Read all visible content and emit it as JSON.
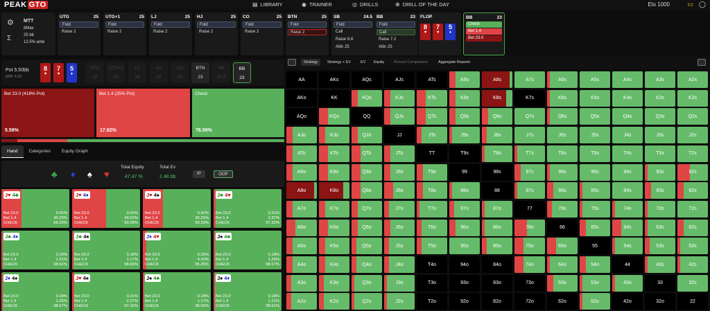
{
  "nav": {
    "logo_a": "PEAK",
    "logo_b": "GTO",
    "library": "LIBRARY",
    "trainer": "TRAINER",
    "drills": "DRILLS",
    "dotd": "DRILL OF THE DAY",
    "elo": "Elo 1000"
  },
  "settings": {
    "game": "MTT",
    "max": "8Max",
    "bb": "25 bb",
    "ante": "12.5% ante"
  },
  "positions": [
    {
      "name": "UTG",
      "stack": "25",
      "opts": [
        "Fold",
        "Raise 2"
      ],
      "sel": -1
    },
    {
      "name": "UTG+1",
      "stack": "25",
      "opts": [
        "Fold",
        "Raise 2"
      ],
      "sel": -1
    },
    {
      "name": "LJ",
      "stack": "25",
      "opts": [
        "Fold",
        "Raise 2"
      ],
      "sel": -1
    },
    {
      "name": "HJ",
      "stack": "25",
      "opts": [
        "Fold",
        "Raise 2"
      ],
      "sel": -1
    },
    {
      "name": "CO",
      "stack": "25",
      "opts": [
        "Fold",
        "Raise 2"
      ],
      "sel": -1
    },
    {
      "name": "BTN",
      "stack": "25",
      "opts": [
        "Fold",
        "Raise 2"
      ],
      "sel": 1
    },
    {
      "name": "SB",
      "stack": "24.5",
      "opts": [
        "Fold",
        "Call",
        "Raise 6.6",
        "Allin 25"
      ],
      "sel": -1
    },
    {
      "name": "BB",
      "stack": "23",
      "opts": [
        "Fold",
        "Call",
        "Raise 7.2",
        "Allin 25"
      ],
      "sel": 1
    }
  ],
  "flop": {
    "label": "FLOP",
    "cards": [
      {
        "rank": "8",
        "suit": "♥"
      },
      {
        "rank": "7",
        "suit": "♥"
      },
      {
        "rank": "5",
        "suit": "♦"
      }
    ]
  },
  "bb_panel": {
    "name": "BB",
    "stack": "23",
    "opts": [
      "Check",
      "Bet 1.4",
      "Bet 23.0"
    ]
  },
  "pot": {
    "label": "Pot",
    "value": "5.50bb",
    "spr": "SPR: 4.18"
  },
  "board_cards": [
    {
      "rank": "8",
      "suit": "♥"
    },
    {
      "rank": "7",
      "suit": "♥"
    },
    {
      "rank": "5",
      "suit": "♦"
    }
  ],
  "seats": [
    {
      "name": "UTG",
      "stack": "25",
      "on": false
    },
    {
      "name": "UTG+1",
      "stack": "25",
      "on": false
    },
    {
      "name": "LJ",
      "stack": "25",
      "on": false
    },
    {
      "name": "HJ",
      "stack": "25",
      "on": false
    },
    {
      "name": "CO",
      "stack": "25",
      "on": false
    },
    {
      "name": "BTN",
      "stack": "23",
      "on": true
    },
    {
      "name": "SB",
      "stack": "24.5",
      "on": false
    },
    {
      "name": "BB",
      "stack": "23",
      "on": true,
      "bb": true
    }
  ],
  "actions": [
    {
      "label": "Bet 23.0 (418% Pot)",
      "pct": "5.59%",
      "color": "#8b1414"
    },
    {
      "label": "Bet 1.4 (25% Pot)",
      "pct": "17.82%",
      "color": "#e04545"
    },
    {
      "label": "Check",
      "pct": "76.59%",
      "color": "#59b05a"
    }
  ],
  "subtabs": [
    "Hand",
    "Categories",
    "Equity Graph"
  ],
  "equity": {
    "total_equity_label": "Total Equity",
    "total_equity": "47.47 %",
    "total_ev_label": "Total Ev",
    "total_ev": "2.48 bb",
    "ip": "IP",
    "oop": "OOP"
  },
  "combos": [
    {
      "c1": "J",
      "s1": "♥",
      "col1": "red",
      "c2": "4",
      "s2": "♣",
      "col2": "green",
      "v": [
        "0.42%",
        "30.25%",
        "69.33%"
      ],
      "bet": 30
    },
    {
      "c1": "J",
      "s1": "♥",
      "col1": "red",
      "c2": "4",
      "s2": "♦",
      "col2": "blue",
      "v": [
        "0.42%",
        "49.52%",
        "50.06%"
      ],
      "bet": 50
    },
    {
      "c1": "J",
      "s1": "♥",
      "col1": "red",
      "c2": "4",
      "s2": "♠",
      "col2": "black",
      "v": [
        "0.42%",
        "30.25%",
        "69.33%"
      ],
      "bet": 30
    },
    {
      "c1": "J",
      "s1": "♣",
      "col1": "green",
      "c2": "4",
      "s2": "♥",
      "col2": "red",
      "v": [
        "0.31%",
        "2.37%",
        "97.32%"
      ],
      "bet": 3
    },
    {
      "c1": "J",
      "s1": "♣",
      "col1": "green",
      "c2": "4",
      "s2": "♦",
      "col2": "blue",
      "v": [
        "0.18%",
        "1.21%",
        "98.61%"
      ],
      "bet": 2
    },
    {
      "c1": "J",
      "s1": "♣",
      "col1": "green",
      "c2": "4",
      "s2": "♠",
      "col2": "black",
      "v": [
        "0.18%",
        "1.17%",
        "98.65%"
      ],
      "bet": 2
    },
    {
      "c1": "J",
      "s1": "♦",
      "col1": "blue",
      "c2": "4",
      "s2": "♥",
      "col2": "red",
      "v": [
        "0.33%",
        "4.43%",
        "95.25%"
      ],
      "bet": 5
    },
    {
      "c1": "J",
      "s1": "♠",
      "col1": "black",
      "c2": "4",
      "s2": "♣",
      "col2": "green",
      "v": [
        "0.18%",
        "1.25%",
        "98.57%"
      ],
      "bet": 2
    },
    {
      "c1": "J",
      "s1": "♦",
      "col1": "blue",
      "c2": "4",
      "s2": "♠",
      "col2": "black",
      "v": [
        "0.18%",
        "1.25%",
        "98.57%"
      ],
      "bet": 2
    },
    {
      "c1": "J",
      "s1": "♥",
      "col1": "red",
      "c2": "4",
      "s2": "♠",
      "col2": "black",
      "v": [
        "0.31%",
        "2.37%",
        "97.32%"
      ],
      "bet": 3
    },
    {
      "c1": "J",
      "s1": "♠",
      "col1": "black",
      "c2": "4",
      "s2": "♣",
      "col2": "green",
      "v": [
        "0.18%",
        "1.17%",
        "98.65%"
      ],
      "bet": 2
    },
    {
      "c1": "J",
      "s1": "♠",
      "col1": "black",
      "c2": "4",
      "s2": "♦",
      "col2": "blue",
      "v": [
        "0.18%",
        "1.21%",
        "98.61%"
      ],
      "bet": 2
    }
  ],
  "combo_labels": [
    "Bet 23.0",
    "Bet 1.4",
    "CHECK"
  ],
  "right_tabs": [
    "Strategy",
    "Strategy + EV",
    "EV",
    "Equity",
    "Runout Comparison",
    "Aggregate Reports"
  ],
  "range": [
    [
      "AA",
      "AKs",
      "AQs",
      "AJs",
      "ATs",
      "A9s",
      "A8s",
      "A7s",
      "A6s",
      "A5s",
      "A4s",
      "A3s",
      "A2s"
    ],
    [
      "AKo",
      "KK",
      "KQs",
      "KJs",
      "KTs",
      "K9s",
      "K8s",
      "K7s",
      "K6s",
      "K5s",
      "K4s",
      "K3s",
      "K2s"
    ],
    [
      "AQo",
      "KQo",
      "QQ",
      "QJs",
      "QTs",
      "Q9s",
      "Q8s",
      "Q7s",
      "Q6s",
      "Q5s",
      "Q4s",
      "Q3s",
      "Q2s"
    ],
    [
      "AJo",
      "KJo",
      "QJo",
      "JJ",
      "JTs",
      "J9s",
      "J8s",
      "J7s",
      "J6s",
      "J5s",
      "J4s",
      "J3s",
      "J2s"
    ],
    [
      "ATo",
      "KTo",
      "QTo",
      "JTo",
      "TT",
      "T9s",
      "T8s",
      "T7s",
      "T6s",
      "T5s",
      "T4s",
      "T3s",
      "T2s"
    ],
    [
      "A9o",
      "K9o",
      "Q9o",
      "J9o",
      "T9o",
      "99",
      "98s",
      "97s",
      "96s",
      "95s",
      "94s",
      "93s",
      "92s"
    ],
    [
      "A8o",
      "K8o",
      "Q8o",
      "J8o",
      "T8o",
      "98o",
      "88",
      "87s",
      "86s",
      "85s",
      "84s",
      "83s",
      "82s"
    ],
    [
      "A7o",
      "K7o",
      "Q7o",
      "J7o",
      "T7o",
      "97o",
      "87o",
      "77",
      "76s",
      "75s",
      "74s",
      "73s",
      "72s"
    ],
    [
      "A6o",
      "K6o",
      "Q6o",
      "J6o",
      "T6o",
      "96o",
      "86o",
      "76o",
      "66",
      "65s",
      "64s",
      "63s",
      "62s"
    ],
    [
      "A5o",
      "K5o",
      "Q5o",
      "J5o",
      "T5o",
      "95o",
      "85o",
      "75o",
      "65o",
      "55",
      "54s",
      "53s",
      "52s"
    ],
    [
      "A4o",
      "K4o",
      "Q4o",
      "J4o",
      "T4o",
      "94o",
      "84o",
      "74o",
      "64o",
      "54o",
      "44",
      "43s",
      "42s"
    ],
    [
      "A3o",
      "K3o",
      "Q3o",
      "J3o",
      "T3o",
      "93o",
      "83o",
      "73o",
      "63o",
      "53o",
      "43o",
      "33",
      "32s"
    ],
    [
      "A2o",
      "K2o",
      "Q2o",
      "J2o",
      "T2o",
      "92o",
      "82o",
      "72o",
      "62o",
      "52o",
      "42o",
      "32o",
      "22"
    ]
  ],
  "range_freq": [
    [
      "k",
      "k",
      "k",
      "k",
      "k",
      "g:0.2",
      "d:0.9",
      "g",
      "g:0.1",
      "g",
      "g",
      "g",
      "g"
    ],
    [
      "k",
      "k",
      "g:0.2",
      "g:0.2",
      "g:0.3",
      "g:0.2",
      "d:0.8",
      "k",
      "g:0.1",
      "g",
      "g",
      "g",
      "g"
    ],
    [
      "k",
      "g:0.3",
      "k",
      "g:0.2",
      "g:0.3",
      "g:0.2",
      "g:0.2",
      "g",
      "g:0.1",
      "g",
      "g",
      "g",
      "g"
    ],
    [
      "g:0.2",
      "g:0.2",
      "g:0.2",
      "k",
      "g:0.15",
      "g:0.1",
      "g:0.15",
      "g",
      "g",
      "g",
      "g",
      "g",
      "g"
    ],
    [
      "g:0.2",
      "g:0.3",
      "g:0.3",
      "g:0.2",
      "k",
      "k",
      "g:0.1",
      "g:0.1",
      "g",
      "g",
      "g",
      "g",
      "g"
    ],
    [
      "g:0.2",
      "g:0.3",
      "g:0.3",
      "g:0.2",
      "g:0.2",
      "k",
      "k",
      "g:0.2",
      "g:0.1",
      "g",
      "g",
      "g:0.1",
      "g:0.4"
    ],
    [
      "d:0.9",
      "d:0.8",
      "g:0.3",
      "g:0.3",
      "g:0.2",
      "g:0.1",
      "k",
      "g:0.1",
      "g:0.2",
      "g:0.1",
      "g",
      "g:0.2",
      "g:0.2"
    ],
    [
      "g:0.2",
      "g:0.2",
      "g:0.2",
      "g:0.15",
      "g:0.1",
      "g:0.15",
      "g:0.1",
      "k",
      "g:0.15",
      "g:0.1",
      "g:0.1",
      "g:0.1",
      "g"
    ],
    [
      "g:0.3",
      "g:0.3",
      "g:0.2",
      "g:0.2",
      "g:0.15",
      "g:0.2",
      "g:0.1",
      "g:0.4",
      "k",
      "g:0.2",
      "g:0.3",
      "g:0.1",
      "g:0.2"
    ],
    [
      "g:0.2",
      "g:0.2",
      "g:0.15",
      "g:0.15",
      "g:0.15",
      "g",
      "g:0.15",
      "g:0.3",
      "g:0.3",
      "k",
      "g:0.1",
      "g:0.15",
      "g:0.1"
    ],
    [
      "g:0.2",
      "g:0.2",
      "g:0.15",
      "g:0.15",
      "k",
      "k",
      "k",
      "g:0.3",
      "g:0.1",
      "g:0.2",
      "k",
      "g:0.1",
      "g:0.1"
    ],
    [
      "g:0.15",
      "g:0.15",
      "g:0.1",
      "g:0.1",
      "k",
      "k",
      "k",
      "k",
      "g:0.2",
      "g:0.1",
      "g:0.1",
      "k",
      "g"
    ],
    [
      "g:0.15",
      "g:0.15",
      "g:0.1",
      "g:0.1",
      "k",
      "k",
      "k",
      "k",
      "k",
      "g:0.1",
      "k",
      "k",
      "k"
    ]
  ]
}
